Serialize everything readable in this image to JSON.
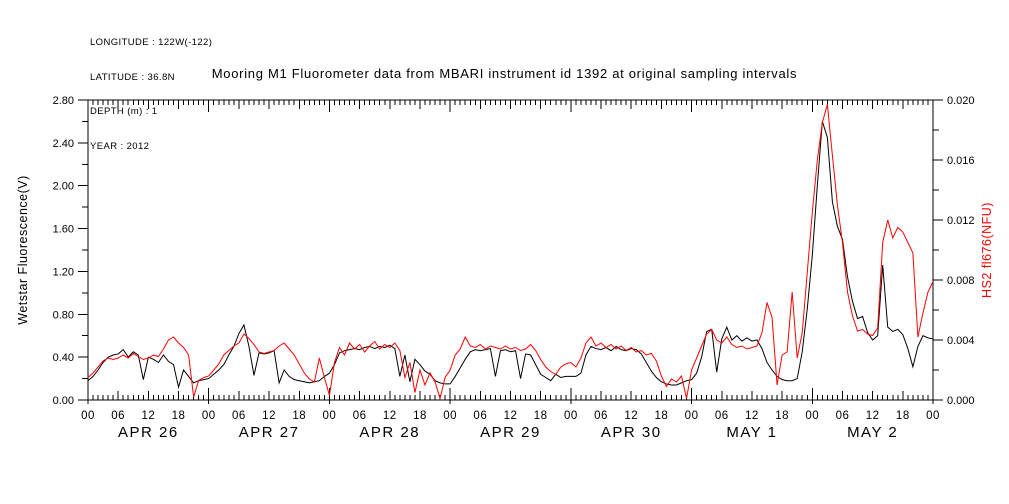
{
  "header": {
    "lines": [
      "LONGITUDE : 122W(-122)",
      "LATITUDE : 36.8N",
      "DEPTH (m) : 1",
      "YEAR : 2012"
    ]
  },
  "title": "Mooring M1 Fluorometer data from MBARI instrument id 1392 at original sampling intervals",
  "colors": {
    "background": "#ffffff",
    "frame": "#000000",
    "black_series": "#000000",
    "red_series": "#ff0000"
  },
  "chart_data": {
    "type": "line",
    "title": "Mooring M1 Fluorometer data from MBARI instrument id 1392 at original sampling intervals",
    "x_unit": "hours since APR 26 2012 00:00",
    "x_start_hour": 0,
    "x_step_hours": 1,
    "x_total_hours": 168,
    "grid": false,
    "legend": "none",
    "x_axis": {
      "minor_tick_hours": 1,
      "labeled_tick_hours": 6,
      "hour_labels": [
        "00",
        "06",
        "12",
        "18"
      ],
      "end_hour_label": "00",
      "day_labels": [
        "APR 26",
        "APR 27",
        "APR 28",
        "APR 29",
        "APR 30",
        "MAY 1",
        "MAY 2"
      ]
    },
    "left_axis": {
      "label": "Wetstar Fluorescence(V)",
      "min": 0.0,
      "max": 2.8,
      "major_step": 0.4,
      "minor_step": 0.2,
      "tick_labels": [
        "0.00",
        "0.40",
        "0.80",
        "1.20",
        "1.60",
        "2.00",
        "2.40",
        "2.80"
      ],
      "color": "#000000"
    },
    "right_axis": {
      "label": "HS2 fl676(NFU)",
      "min": 0.0,
      "max": 0.02,
      "major_step": 0.004,
      "minor_step": 0.002,
      "tick_labels": [
        "0.000",
        "0.004",
        "0.008",
        "0.012",
        "0.016",
        "0.020"
      ],
      "color": "#ff0000"
    },
    "series": [
      {
        "name": "Wetstar Fluorescence(V)",
        "axis": "left",
        "color": "#000000",
        "values": [
          0.18,
          0.22,
          0.28,
          0.35,
          0.4,
          0.42,
          0.43,
          0.47,
          0.4,
          0.45,
          0.42,
          0.19,
          0.4,
          0.38,
          0.35,
          0.42,
          0.36,
          0.33,
          0.12,
          0.28,
          0.22,
          0.16,
          0.18,
          0.19,
          0.2,
          0.24,
          0.28,
          0.33,
          0.42,
          0.5,
          0.62,
          0.7,
          0.5,
          0.23,
          0.44,
          0.43,
          0.44,
          0.46,
          0.16,
          0.28,
          0.22,
          0.19,
          0.18,
          0.17,
          0.16,
          0.17,
          0.18,
          0.22,
          0.25,
          0.33,
          0.44,
          0.46,
          0.47,
          0.48,
          0.47,
          0.49,
          0.5,
          0.48,
          0.5,
          0.49,
          0.51,
          0.48,
          0.22,
          0.42,
          0.17,
          0.38,
          0.33,
          0.27,
          0.24,
          0.18,
          0.16,
          0.15,
          0.15,
          0.22,
          0.3,
          0.38,
          0.45,
          0.47,
          0.46,
          0.47,
          0.48,
          0.22,
          0.46,
          0.47,
          0.45,
          0.46,
          0.2,
          0.43,
          0.42,
          0.33,
          0.24,
          0.21,
          0.18,
          0.24,
          0.21,
          0.22,
          0.22,
          0.22,
          0.25,
          0.42,
          0.5,
          0.48,
          0.47,
          0.49,
          0.46,
          0.5,
          0.47,
          0.46,
          0.48,
          0.47,
          0.43,
          0.35,
          0.27,
          0.21,
          0.17,
          0.15,
          0.14,
          0.14,
          0.16,
          0.18,
          0.19,
          0.25,
          0.4,
          0.64,
          0.66,
          0.26,
          0.57,
          0.68,
          0.56,
          0.6,
          0.55,
          0.58,
          0.55,
          0.56,
          0.48,
          0.35,
          0.28,
          0.22,
          0.19,
          0.18,
          0.18,
          0.2,
          0.45,
          0.85,
          1.35,
          2.0,
          2.6,
          2.45,
          1.85,
          1.62,
          1.5,
          1.15,
          0.92,
          0.76,
          0.78,
          0.63,
          0.56,
          0.6,
          1.26,
          0.68,
          0.64,
          0.66,
          0.61,
          0.48,
          0.31,
          0.5,
          0.6,
          0.58,
          0.57
        ]
      },
      {
        "name": "HS2 fl676(NFU)",
        "axis": "right",
        "color": "#ff0000",
        "values": [
          0.0015,
          0.0018,
          0.0022,
          0.0026,
          0.0028,
          0.0027,
          0.0028,
          0.003,
          0.0028,
          0.0031,
          0.0029,
          0.0027,
          0.0028,
          0.003,
          0.0029,
          0.0034,
          0.004,
          0.0042,
          0.0038,
          0.0035,
          0.003,
          0.0002,
          0.0013,
          0.0015,
          0.0016,
          0.002,
          0.0024,
          0.003,
          0.0033,
          0.0036,
          0.0038,
          0.0044,
          0.0041,
          0.0037,
          0.0032,
          0.0031,
          0.0032,
          0.0033,
          0.0036,
          0.0038,
          0.0034,
          0.003,
          0.0024,
          0.0018,
          0.0014,
          0.0012,
          0.0028,
          0.0015,
          0.0003,
          0.0025,
          0.0035,
          0.003,
          0.0038,
          0.0034,
          0.0037,
          0.0032,
          0.0036,
          0.0039,
          0.0034,
          0.0037,
          0.0035,
          0.0038,
          0.0033,
          0.0015,
          0.0025,
          0.0005,
          0.002,
          0.001,
          0.0018,
          0.0012,
          0.0001,
          0.0015,
          0.002,
          0.003,
          0.0034,
          0.0042,
          0.0036,
          0.0035,
          0.0037,
          0.0034,
          0.0036,
          0.0035,
          0.0034,
          0.0036,
          0.0034,
          0.0035,
          0.0033,
          0.0034,
          0.0037,
          0.0033,
          0.0027,
          0.0022,
          0.0019,
          0.0017,
          0.0022,
          0.0024,
          0.0025,
          0.0022,
          0.0028,
          0.0038,
          0.0042,
          0.0036,
          0.0038,
          0.0035,
          0.0037,
          0.0034,
          0.0036,
          0.0033,
          0.0035,
          0.0032,
          0.0033,
          0.003,
          0.0031,
          0.0026,
          0.0016,
          0.0009,
          0.0014,
          0.0012,
          0.0016,
          0.0001,
          0.002,
          0.0028,
          0.0036,
          0.0044,
          0.0047,
          0.004,
          0.0038,
          0.0042,
          0.0037,
          0.0035,
          0.0036,
          0.0034,
          0.0035,
          0.0036,
          0.0045,
          0.0065,
          0.0055,
          0.001,
          0.003,
          0.0032,
          0.0072,
          0.0028,
          0.0045,
          0.0085,
          0.0125,
          0.016,
          0.0185,
          0.0197,
          0.0163,
          0.013,
          0.0105,
          0.0072,
          0.0056,
          0.0046,
          0.0047,
          0.0044,
          0.0043,
          0.0048,
          0.0105,
          0.012,
          0.0108,
          0.0115,
          0.0112,
          0.0105,
          0.0098,
          0.0042,
          0.0058,
          0.0072,
          0.0079
        ]
      }
    ]
  }
}
